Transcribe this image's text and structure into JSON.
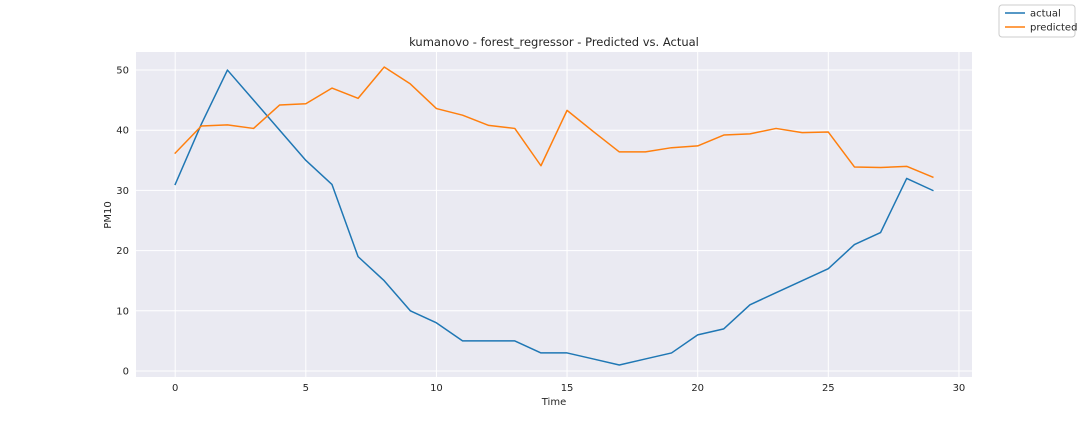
{
  "chart_data": {
    "type": "line",
    "title": "kumanovo - forest_regressor - Predicted vs. Actual",
    "xlabel": "Time",
    "ylabel": "PM10",
    "xlim": [
      -1.5,
      30.5
    ],
    "ylim": [
      -1.0,
      53.0
    ],
    "xticks": [
      0,
      5,
      10,
      15,
      20,
      25,
      30
    ],
    "yticks": [
      0,
      10,
      20,
      30,
      40,
      50
    ],
    "grid": true,
    "legend_position": "top-right",
    "x": [
      0,
      1,
      2,
      3,
      4,
      5,
      6,
      7,
      8,
      9,
      10,
      11,
      12,
      13,
      14,
      15,
      16,
      17,
      18,
      19,
      20,
      21,
      22,
      23,
      24,
      25,
      26,
      27,
      28,
      29
    ],
    "series": [
      {
        "name": "actual",
        "color": "#1f77b4",
        "values": [
          31,
          41,
          50,
          45,
          40,
          35,
          31,
          19,
          15,
          10,
          8,
          5,
          5,
          5,
          3,
          3,
          2,
          1,
          2,
          3,
          6,
          7,
          11,
          13,
          15,
          17,
          21,
          23,
          32,
          30
        ]
      },
      {
        "name": "predicted",
        "color": "#ff7f0e",
        "values": [
          36.2,
          40.7,
          40.9,
          40.3,
          44.2,
          44.4,
          47.0,
          45.3,
          50.5,
          47.7,
          43.6,
          42.5,
          40.8,
          40.3,
          34.1,
          43.3,
          39.8,
          36.4,
          36.4,
          37.1,
          37.4,
          39.2,
          39.4,
          40.3,
          39.6,
          39.7,
          33.9,
          33.8,
          34.0,
          32.2
        ]
      }
    ]
  }
}
